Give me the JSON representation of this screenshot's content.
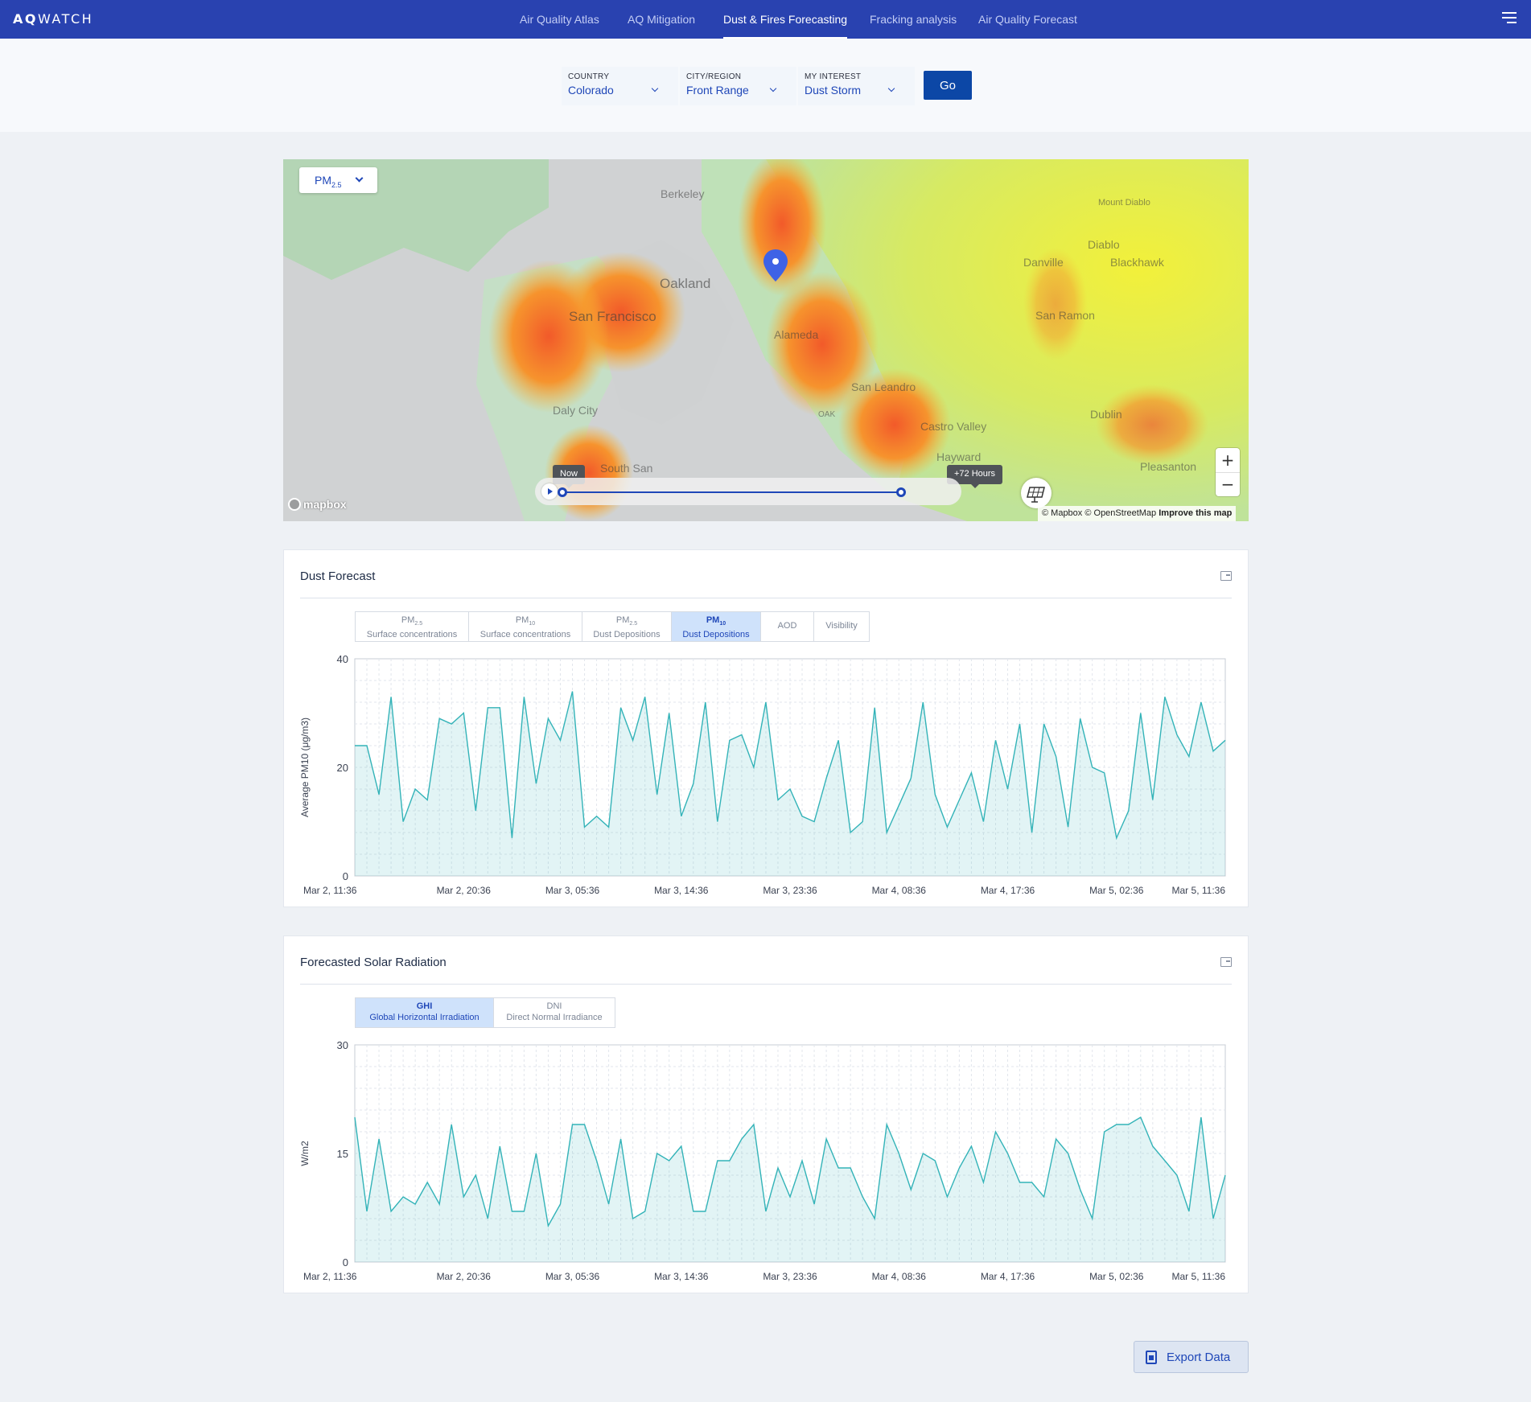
{
  "app": {
    "logo_bold": "AQ",
    "logo_rest": "WATCH"
  },
  "nav": {
    "items": [
      {
        "label": "Air Quality Atlas",
        "active": false
      },
      {
        "label": "AQ Mitigation",
        "active": false
      },
      {
        "label": "Dust & Fires Forecasting",
        "active": true
      },
      {
        "label": "Fracking analysis",
        "active": false
      },
      {
        "label": "Air Quality Forecast",
        "active": false
      }
    ]
  },
  "selectors": {
    "country": {
      "caption": "COUNTRY",
      "value": "Colorado"
    },
    "city": {
      "caption": "CITY/REGION",
      "value": "Front Range"
    },
    "interest": {
      "caption": "MY INTEREST",
      "value": "Dust Storm"
    },
    "go_label": "Go"
  },
  "map": {
    "pollutant_select": {
      "base": "PM",
      "sub": "2.5"
    },
    "places": [
      "Berkeley",
      "Oakland",
      "San Francisco",
      "Alameda",
      "San Leandro",
      "Daly City",
      "South San",
      "Castro Valley",
      "Hayward",
      "Danville",
      "Diablo",
      "Blackhawk",
      "Mount Diablo",
      "San Ramon",
      "Dublin",
      "Pleasanton",
      "OAK"
    ],
    "timeline": {
      "start_label": "Now",
      "end_label": "+72 Hours"
    },
    "zoom_in": "+",
    "zoom_out": "−",
    "attribution": {
      "text": "© Mapbox © OpenStreetMap",
      "link": "Improve this map"
    },
    "logo_text": "mapbox"
  },
  "dust_panel": {
    "title": "Dust Forecast",
    "tabs": [
      {
        "l1": "PM",
        "sub": "2.5",
        "l2": "Surface concentrations",
        "active": false
      },
      {
        "l1": "PM",
        "sub": "10",
        "l2": "Surface concentrations",
        "active": false
      },
      {
        "l1": "PM",
        "sub": "2.5",
        "l2": "Dust Depositions",
        "active": false
      },
      {
        "l1": "PM",
        "sub": "10",
        "l2": "Dust Depositions",
        "active": true
      },
      {
        "l1": "AOD",
        "sub": "",
        "l2": "",
        "active": false
      },
      {
        "l1": "Visibility",
        "sub": "",
        "l2": "",
        "active": false
      }
    ]
  },
  "solar_panel": {
    "title": "Forecasted Solar Radiation",
    "tabs": [
      {
        "l1": "GHI",
        "sub": "",
        "l2": "Global Horizontal Irradiation",
        "active": true
      },
      {
        "l1": "DNI",
        "sub": "",
        "l2": "Direct Normal Irradiance",
        "active": false
      }
    ]
  },
  "export_label": "Export Data",
  "chart_data": [
    {
      "type": "area",
      "ylabel": "Average PM10 (μg/m3)",
      "ylim": [
        0,
        40
      ],
      "yticks": [
        0,
        20,
        40
      ],
      "xticklabels": [
        "Mar 2, 11:36",
        "Mar 2, 20:36",
        "Mar 3, 05:36",
        "Mar 3, 14:36",
        "Mar 3, 23:36",
        "Mar 4, 08:36",
        "Mar 4, 17:36",
        "Mar 5, 02:36",
        "Mar 5, 11:36"
      ],
      "color": "#33b3b8",
      "values": [
        24,
        24,
        15,
        33,
        10,
        16,
        14,
        29,
        28,
        30,
        12,
        31,
        31,
        7,
        33,
        17,
        29,
        25,
        34,
        9,
        11,
        9,
        31,
        25,
        33,
        15,
        30,
        11,
        17,
        32,
        10,
        25,
        26,
        20,
        32,
        14,
        16,
        11,
        10,
        18,
        25,
        8,
        10,
        31,
        8,
        13,
        18,
        32,
        15,
        9,
        14,
        19,
        10,
        25,
        16,
        28,
        8,
        28,
        22,
        9,
        29,
        20,
        19,
        7,
        12,
        30,
        14,
        33,
        26,
        22,
        32,
        23,
        25
      ]
    },
    {
      "type": "area",
      "ylabel": "W/m2",
      "ylim": [
        0,
        30
      ],
      "yticks": [
        0,
        15,
        30
      ],
      "xticklabels": [
        "Mar 2, 11:36",
        "Mar 2, 20:36",
        "Mar 3, 05:36",
        "Mar 3, 14:36",
        "Mar 3, 23:36",
        "Mar 4, 08:36",
        "Mar 4, 17:36",
        "Mar 5, 02:36",
        "Mar 5, 11:36"
      ],
      "color": "#33b3b8",
      "values": [
        20,
        7,
        17,
        7,
        9,
        8,
        11,
        8,
        19,
        9,
        12,
        6,
        16,
        7,
        7,
        15,
        5,
        8,
        19,
        19,
        14,
        8,
        17,
        6,
        7,
        15,
        14,
        16,
        7,
        7,
        14,
        14,
        17,
        19,
        7,
        13,
        9,
        14,
        8,
        17,
        13,
        13,
        9,
        6,
        19,
        15,
        10,
        15,
        14,
        9,
        13,
        16,
        11,
        18,
        15,
        11,
        11,
        9,
        17,
        15,
        10,
        6,
        18,
        19,
        19,
        20,
        16,
        14,
        12,
        7,
        20,
        6,
        12
      ]
    }
  ]
}
